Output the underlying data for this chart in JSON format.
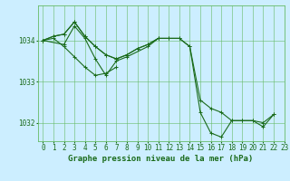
{
  "background_color": "#cceeff",
  "plot_bg_color": "#cceeff",
  "grid_color": "#66bb66",
  "line_color": "#1a6b1a",
  "xlabel": "Graphe pression niveau de la mer (hPa)",
  "xlabel_fontsize": 6.5,
  "tick_fontsize": 5.5,
  "xlim": [
    -0.5,
    23
  ],
  "ylim": [
    1031.55,
    1034.85
  ],
  "yticks": [
    1032,
    1033,
    1034
  ],
  "xticks": [
    0,
    1,
    2,
    3,
    4,
    5,
    6,
    7,
    8,
    9,
    10,
    11,
    12,
    13,
    14,
    15,
    16,
    17,
    18,
    19,
    20,
    21,
    22,
    23
  ],
  "series": [
    [
      1034.0,
      1034.1,
      1034.15,
      1034.45,
      1034.1,
      1033.85,
      1033.65,
      1033.55,
      1033.65,
      1033.8,
      1033.9,
      1034.05,
      1034.05,
      1034.05,
      1033.85,
      1032.25,
      1031.75,
      1031.65,
      1032.05,
      1032.05,
      1032.05,
      1031.9,
      1032.2,
      null
    ],
    [
      1034.0,
      1034.1,
      1034.15,
      1034.45,
      1034.1,
      1033.85,
      1033.65,
      1033.55,
      1033.65,
      1033.8,
      1033.9,
      1034.05,
      1034.05,
      1034.05,
      1033.85,
      1032.55,
      1032.35,
      1032.25,
      1032.05,
      1032.05,
      1032.05,
      1032.0,
      1032.2,
      null
    ],
    [
      1034.0,
      1034.05,
      1033.85,
      1033.6,
      1033.35,
      1033.15,
      1033.2,
      1033.35,
      null,
      null,
      null,
      null,
      null,
      null,
      null,
      null,
      null,
      null,
      null,
      null,
      null,
      null,
      null,
      null
    ],
    [
      1034.0,
      null,
      1033.9,
      1034.35,
      1034.05,
      1033.55,
      1033.15,
      1033.5,
      1033.6,
      null,
      1033.85,
      1034.05,
      null,
      null,
      null,
      null,
      null,
      null,
      null,
      null,
      null,
      null,
      null,
      null
    ]
  ]
}
